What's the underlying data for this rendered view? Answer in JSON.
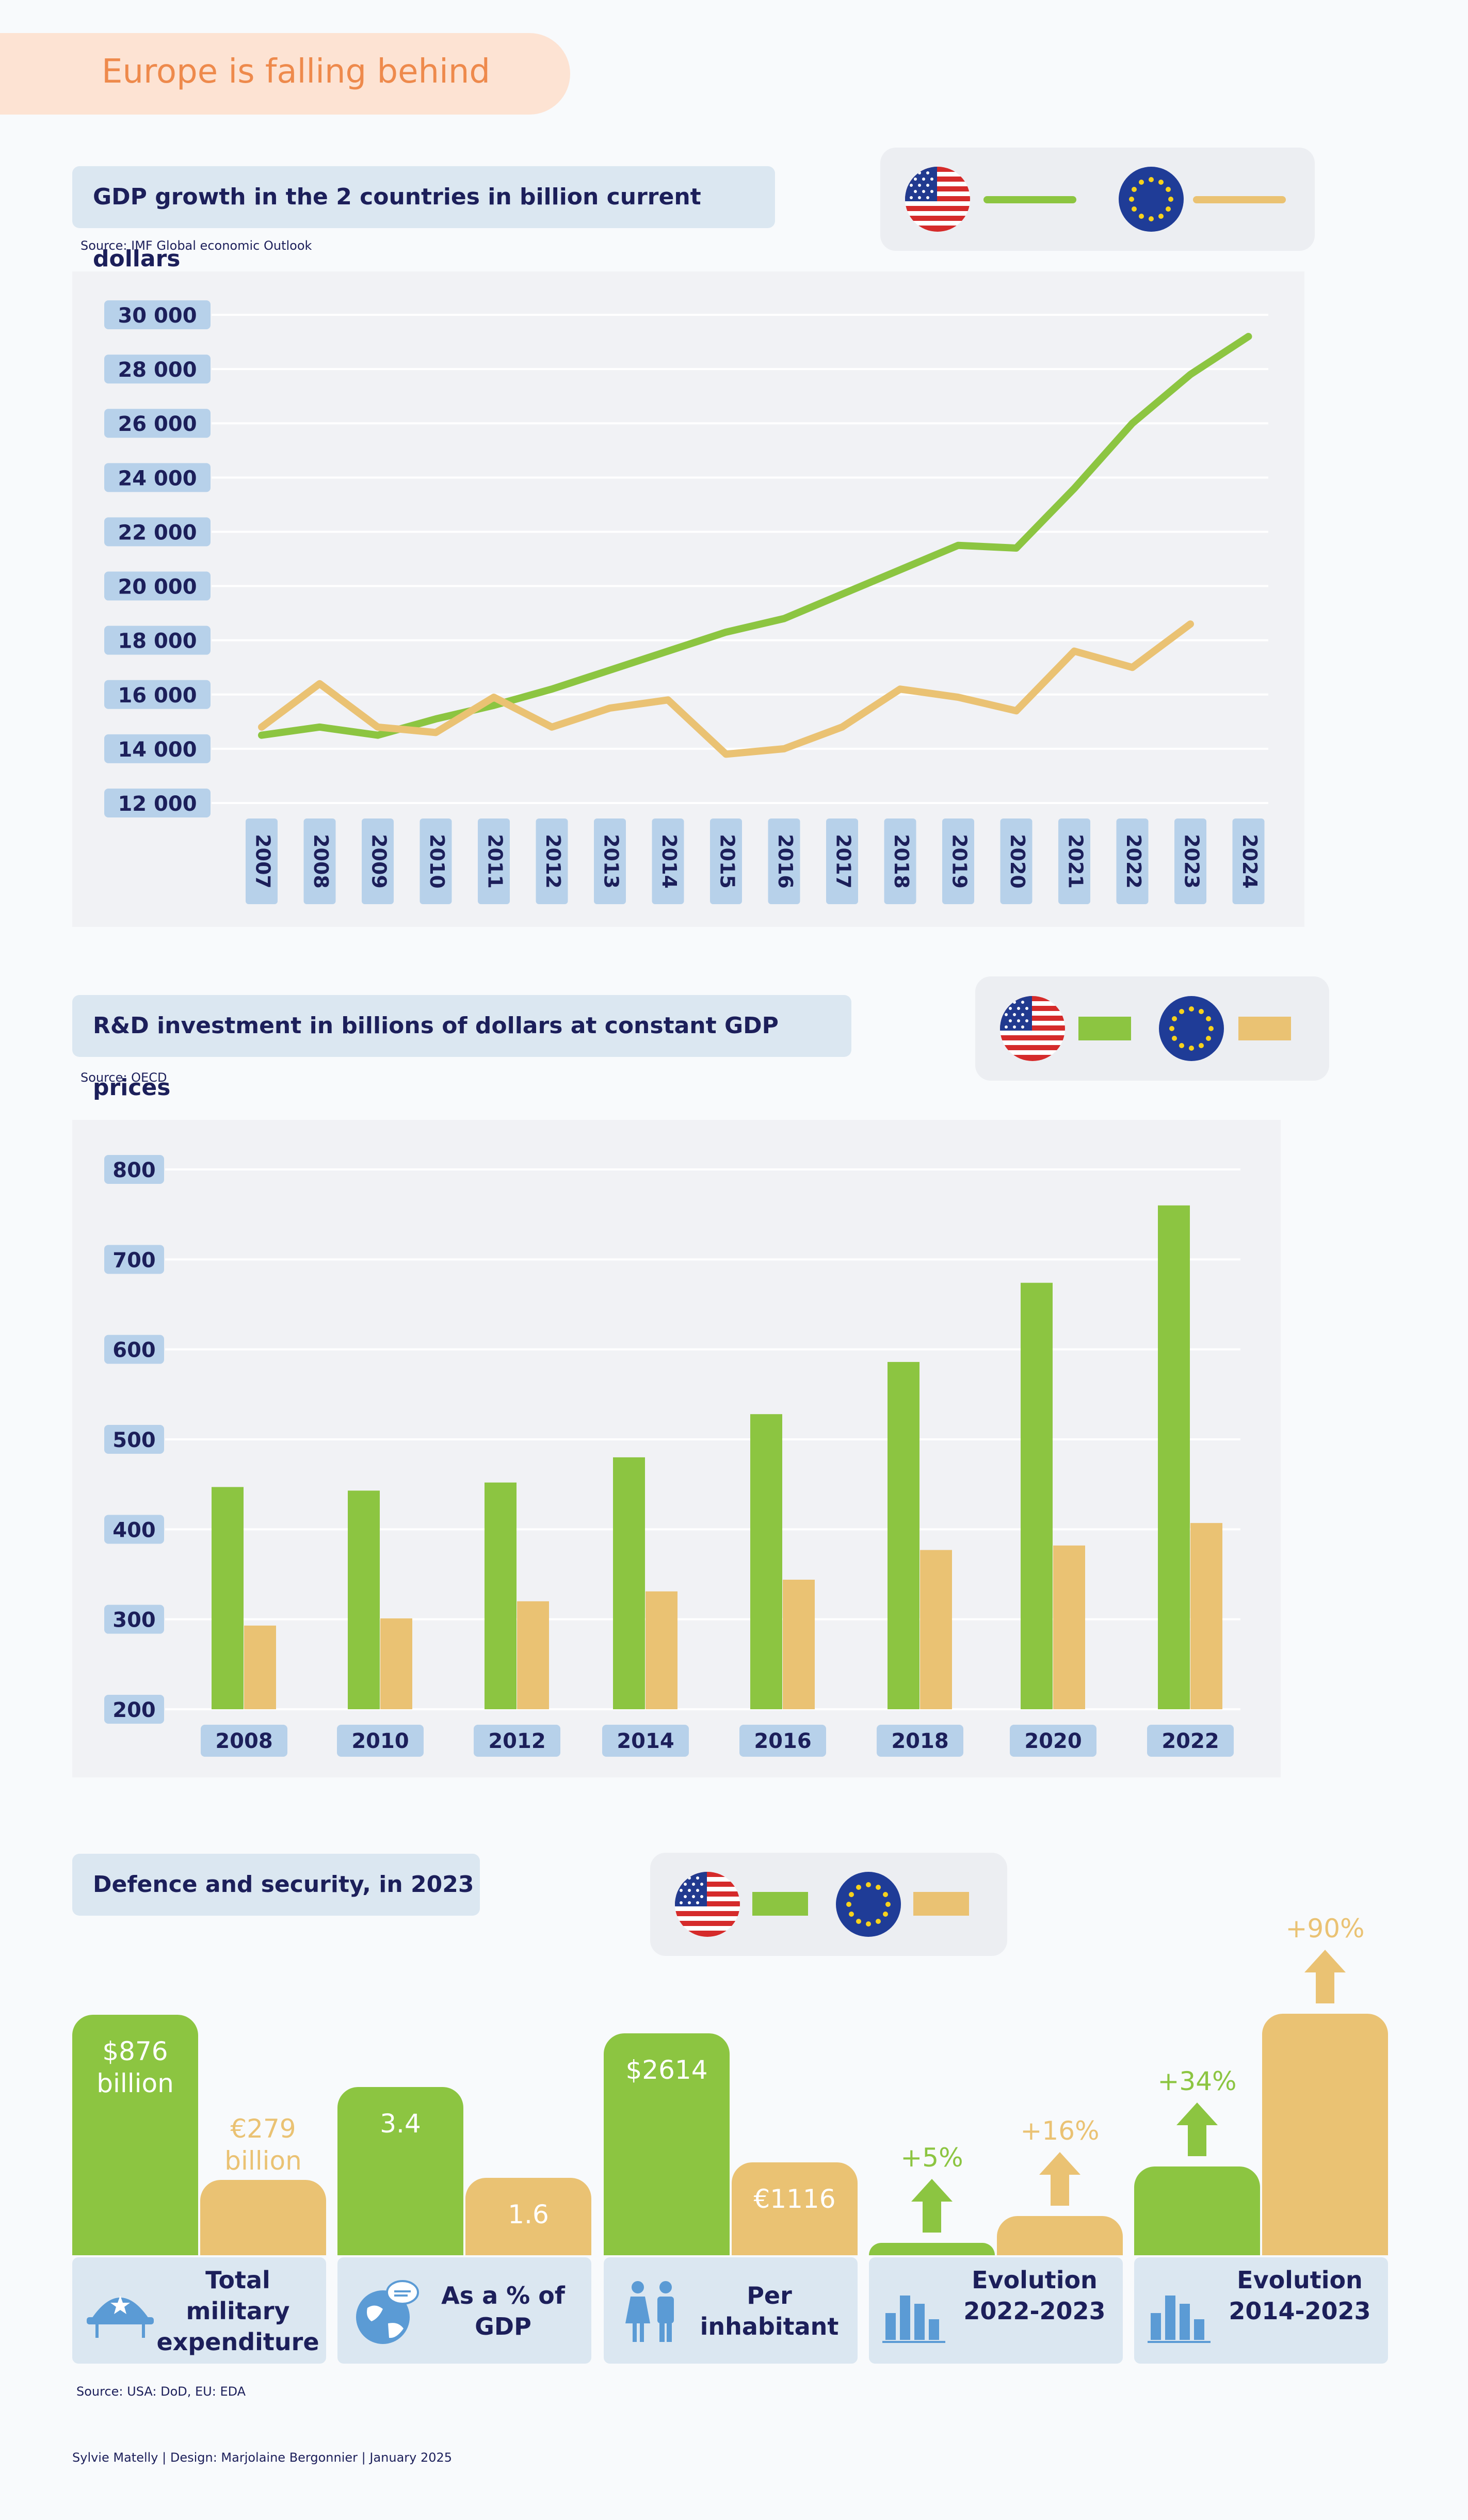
{
  "page_title": "Europe is falling behind",
  "gdp": {
    "title": "GDP growth in the 2 countries in billion current dollars",
    "source": "Source: IMF Global economic Outlook"
  },
  "rd": {
    "title": "R&D investment in billions of dollars at constant GDP prices",
    "source": "Source: OECD"
  },
  "defence": {
    "title": "Defence and security, in 2023",
    "source": "Source: USA: DoD, EU: EDA"
  },
  "footer": "Sylvie Matelly  |  Design: Marjolaine Bergonnier  |  January 2025",
  "colors": {
    "usa": "#8cc541",
    "eu": "#eac273",
    "navy": "#1c1f5a",
    "axis_label_bg": "#b7d1ea"
  },
  "chart_data": [
    {
      "type": "line",
      "title": "GDP growth in the 2 countries in billion current dollars",
      "x": [
        2007,
        2008,
        2009,
        2010,
        2011,
        2012,
        2013,
        2014,
        2015,
        2016,
        2017,
        2018,
        2019,
        2020,
        2021,
        2022,
        2023,
        2024
      ],
      "y_ticks": [
        "30 000",
        "28 000",
        "26 000",
        "24 000",
        "22 000",
        "20 000",
        "18 000",
        "16 000",
        "14 000",
        "12 000"
      ],
      "ylim": [
        12000,
        30000
      ],
      "grid": true,
      "legend": "top-right",
      "series": [
        {
          "values": [
            14500,
            14800,
            14500,
            15100,
            15600,
            16200,
            16900,
            17600,
            18300,
            18800,
            19700,
            20600,
            21500,
            21400,
            23600,
            26000,
            27800,
            29200
          ],
          "color": "#8cc541"
        },
        {
          "values": [
            14800,
            16400,
            14800,
            14600,
            15900,
            14800,
            15500,
            15800,
            13800,
            14000,
            14800,
            16200,
            15900,
            15400,
            17600,
            17000,
            18600,
            null
          ],
          "color": "#eac273"
        }
      ]
    },
    {
      "type": "bar",
      "title": "R&D investment in billions of dollars at constant GDP prices",
      "categories": [
        "2008",
        "2010",
        "2012",
        "2014",
        "2016",
        "2018",
        "2020",
        "2022"
      ],
      "y_ticks": [
        "800",
        "700",
        "600",
        "500",
        "400",
        "300",
        "200"
      ],
      "ylim": [
        200,
        800
      ],
      "legend": "top-right",
      "series": [
        {
          "values": [
            447,
            443,
            452,
            480,
            528,
            586,
            674,
            760
          ],
          "color": "#8cc541"
        },
        {
          "values": [
            293,
            301,
            320,
            331,
            344,
            377,
            382,
            407
          ],
          "color": "#eac273"
        }
      ]
    },
    {
      "type": "bar",
      "title": "Defence and security, in 2023",
      "legend": "top-right",
      "groups": [
        {
          "label": "Total military expenditure",
          "icon": "military-helmet-icon",
          "usa_label": "$876 billion",
          "eu_label": "€279 billion",
          "usa_value": 876,
          "eu_value": 279
        },
        {
          "label": "As a % of GDP",
          "icon": "globe-icon",
          "usa_label": "3.4",
          "eu_label": "1.6",
          "usa_value": 3.4,
          "eu_value": 1.6
        },
        {
          "label": "Per inhabitant",
          "icon": "people-icon",
          "usa_label": "$2614",
          "eu_label": "€1116",
          "usa_value": 2614,
          "eu_value": 1116
        },
        {
          "label": "Evolution 2022-2023",
          "icon": "bar-chart-icon",
          "usa_label": "+5%",
          "eu_label": "+16%",
          "usa_value": 5,
          "eu_value": 16
        },
        {
          "label": "Evolution 2014-2023",
          "icon": "bar-chart-icon",
          "usa_label": "+34%",
          "eu_label": "+90%",
          "usa_value": 34,
          "eu_value": 90
        }
      ]
    }
  ]
}
